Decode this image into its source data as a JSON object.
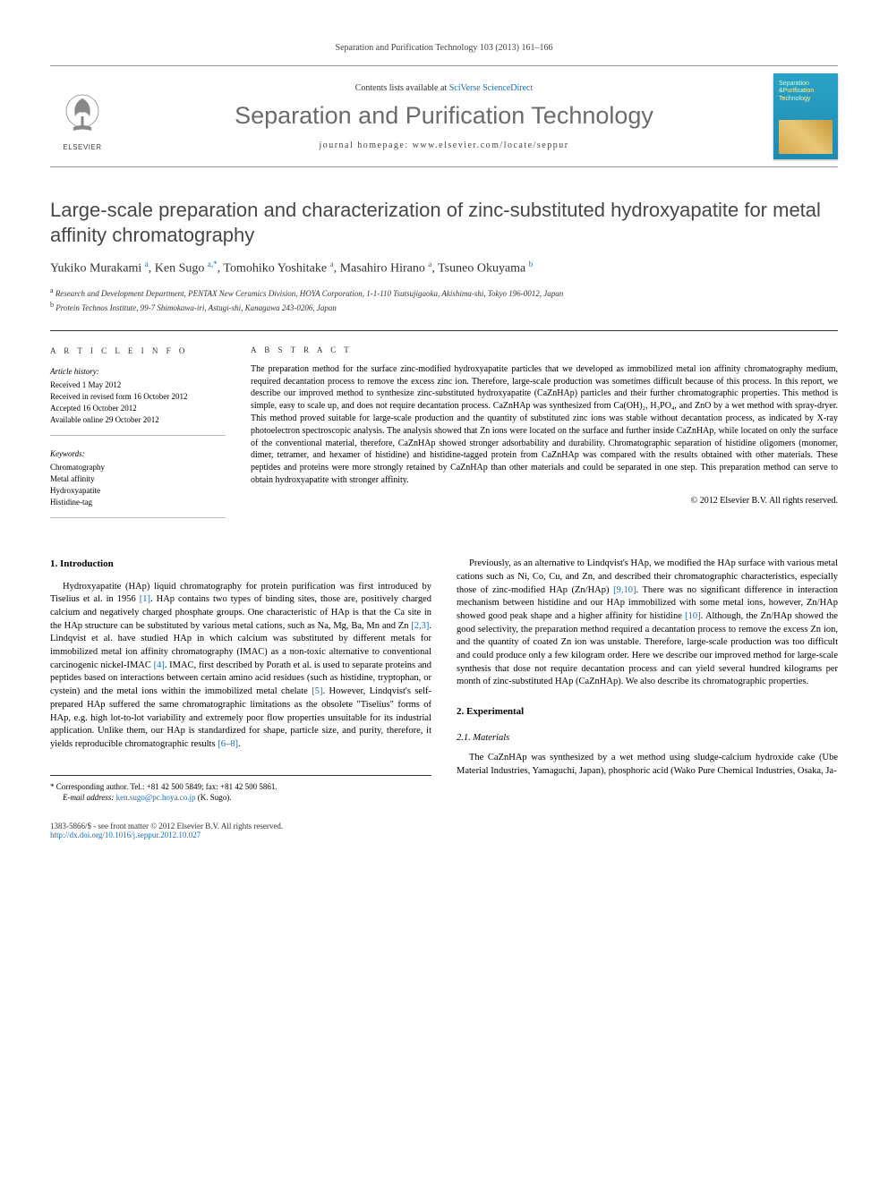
{
  "citation": "Separation and Purification Technology 103 (2013) 161–166",
  "masthead": {
    "contents_prefix": "Contents lists available at ",
    "contents_link": "SciVerse ScienceDirect",
    "journal_name": "Separation and Purification Technology",
    "homepage_prefix": "journal homepage: ",
    "homepage_url": "www.elsevier.com/locate/seppur",
    "publisher": "ELSEVIER",
    "cover_title": "Separation\nPurification\nTechnology"
  },
  "article": {
    "title": "Large-scale preparation and characterization of zinc-substituted hydroxyapatite for metal affinity chromatography",
    "authors_html": "Yukiko Murakami <sup>a</sup>, Ken Sugo <sup>a,*</sup>, Tomohiko Yoshitake <sup>a</sup>, Masahiro Hirano <sup>a</sup>, Tsuneo Okuyama <sup>b</sup>",
    "affiliations": [
      {
        "sup": "a",
        "text": "Research and Development Department, PENTAX New Ceramics Division, HOYA Corporation, 1-1-110 Tsutsujigaoka, Akishima-shi, Tokyo 196-0012, Japan"
      },
      {
        "sup": "b",
        "text": "Protein Technos Institute, 99-7 Shimokawa-iri, Astugi-shi, Kanagawa 243-0206, Japan"
      }
    ]
  },
  "article_info": {
    "header": "A R T I C L E   I N F O",
    "history_head": "Article history:",
    "history": [
      "Received 1 May 2012",
      "Received in revised form 16 October 2012",
      "Accepted 16 October 2012",
      "Available online 29 October 2012"
    ],
    "keywords_head": "Keywords:",
    "keywords": [
      "Chromatography",
      "Metal affinity",
      "Hydroxyapatite",
      "Histidine-tag"
    ]
  },
  "abstract": {
    "header": "A B S T R A C T",
    "text": "The preparation method for the surface zinc-modified hydroxyapatite particles that we developed as immobilized metal ion affinity chromatography medium, required decantation process to remove the excess zinc ion. Therefore, large-scale production was sometimes difficult because of this process. In this report, we describe our improved method to synthesize zinc-substituted hydroxyapatite (CaZnHAp) particles and their further chromatographic properties. This method is simple, easy to scale up, and does not require decantation process. CaZnHAp was synthesized from Ca(OH)₂, H₃PO₄, and ZnO by a wet method with spray-dryer. This method proved suitable for large-scale production and the quantity of substituted zinc ions was stable without decantation process, as indicated by X-ray photoelectron spectroscopic analysis. The analysis showed that Zn ions were located on the surface and further inside CaZnHAp, while located on only the surface of the conventional material, therefore, CaZnHAp showed stronger adsorbability and durability. Chromatographic separation of histidine oligomers (monomer, dimer, tetramer, and hexamer of histidine) and histidine-tagged protein from CaZnHAp was compared with the results obtained with other materials. These peptides and proteins were more strongly retained by CaZnHAp than other materials and could be separated in one step. This preparation method can serve to obtain hydroxyapatite with stronger affinity.",
    "copyright": "© 2012 Elsevier B.V. All rights reserved."
  },
  "body": {
    "s1_head": "1. Introduction",
    "s1_p1": "Hydroxyapatite (HAp) liquid chromatography for protein purification was first introduced by Tiselius et al. in 1956 [1]. HAp contains two types of binding sites, those are, positively charged calcium and negatively charged phosphate groups. One characteristic of HAp is that the Ca site in the HAp structure can be substituted by various metal cations, such as Na, Mg, Ba, Mn and Zn [2,3]. Lindqvist et al. have studied HAp in which calcium was substituted by different metals for immobilized metal ion affinity chromatography (IMAC) as a non-toxic alternative to conventional carcinogenic nickel-IMAC [4]. IMAC, first described by Porath et al. is used to separate proteins and peptides based on interactions between certain amino acid residues (such as histidine, tryptophan, or cystein) and the metal ions within the immobilized metal chelate [5]. However, Lindqvist's self-prepared HAp suffered the same chromatographic limitations as the obsolete \"Tiselius\" forms of HAp, e.g. high lot-to-lot variability and extremely poor flow properties unsuitable for its industrial application. Unlike them, our HAp is standardized for shape, particle size, and purity, therefore, it yields reproducible chromatographic results [6–8].",
    "s1_p2": "Previously, as an alternative to Lindqvist's HAp, we modified the HAp surface with various metal cations such as Ni, Co, Cu, and Zn, and described their chromatographic characteristics, especially those of zinc-modified HAp (Zn/HAp) [9,10]. There was no significant difference in interaction mechanism between histidine and our HAp immobilized with some metal ions, however, Zn/HAp showed good peak shape and a higher affinity for histidine [10]. Although, the Zn/HAp showed the good selectivity, the preparation method required a decantation process to remove the excess Zn ion, and the quantity of coated Zn ion was unstable. Therefore, large-scale production was too difficult and could produce only a few kilogram order. Here we describe our improved method for large-scale synthesis that dose not require decantation process and can yield several hundred kilograms per month of zinc-substituted HAp (CaZnHAp). We also describe its chromatographic properties.",
    "s2_head": "2. Experimental",
    "s2_1_head": "2.1. Materials",
    "s2_1_p1": "The CaZnHAp was synthesized by a wet method using sludge-calcium hydroxide cake (Ube Material Industries, Yamaguchi, Japan), phosphoric acid (Wako Pure Chemical Industries, Osaka, Ja-"
  },
  "corr": {
    "star": "*",
    "text": "Corresponding author. Tel.: +81 42 500 5849; fax: +81 42 500 5861.",
    "email_label": "E-mail address:",
    "email": "ken.sugo@pc.hoya.co.jp",
    "email_author": "(K. Sugo)."
  },
  "footer": {
    "left1": "1383-5866/$ - see front matter © 2012 Elsevier B.V. All rights reserved.",
    "left2_url": "http://dx.doi.org/10.1016/j.seppur.2012.10.027"
  },
  "colors": {
    "link": "#1a6bb5",
    "title_gray": "#474747",
    "journal_gray": "#6b6b6b",
    "cover_top": "#2aa3c9",
    "cover_bottom": "#1e8ab0",
    "elsevier_orange": "#e77313"
  }
}
